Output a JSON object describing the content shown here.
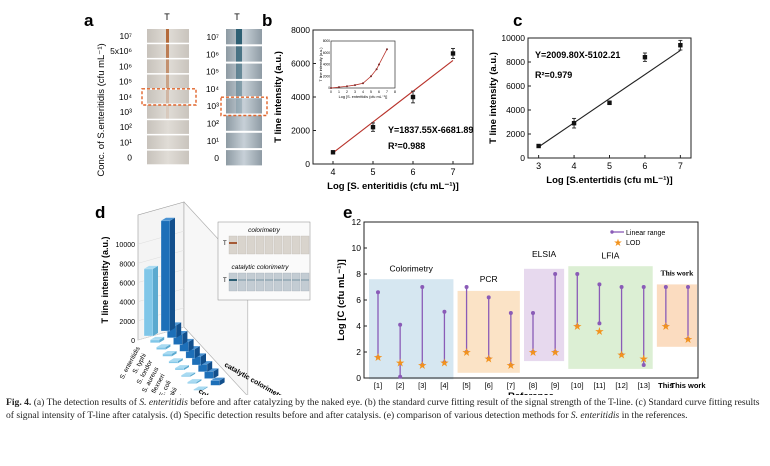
{
  "panel_a": {
    "label": "a",
    "ylabel": "Conc. of S.enteritidis (cfu mL⁻¹)",
    "t_label": "T",
    "left_strip_labels": [
      "10⁷",
      "5x10⁶",
      "10⁶",
      "10⁵",
      "10⁴",
      "10³",
      "10²",
      "10¹",
      "0"
    ],
    "right_strip_labels": [
      "10⁷",
      "10⁶",
      "10⁵",
      "10⁴",
      "10³",
      "10²",
      "10¹",
      "0"
    ]
  },
  "chart_data": [
    {
      "panel": "b",
      "type": "scatter",
      "xlabel": "Log [S. enteritidis (cfu mL⁻¹)]",
      "ylabel": "T line intensity (a.u.)",
      "xlim": [
        3.5,
        7.5
      ],
      "ylim": [
        0,
        8000
      ],
      "xticks": [
        4,
        5,
        6,
        7
      ],
      "yticks": [
        0,
        2000,
        4000,
        6000,
        8000
      ],
      "x": [
        4,
        5,
        6,
        7
      ],
      "y": [
        700,
        2200,
        4000,
        6600
      ],
      "err": [
        80,
        250,
        350,
        300
      ],
      "fit": {
        "slope": 1837.55,
        "intercept": -6681.89
      },
      "equation": "Y=1837.55X-6681.89",
      "r2": "R²=0.988",
      "inset": {
        "xlabel": "Log [S. enteritidis (cfu mL⁻¹)]",
        "ylabel": "T line intensity (a.u.)",
        "x": [
          0,
          1,
          2,
          3,
          4,
          5,
          5.7,
          6,
          7
        ],
        "y": [
          0,
          150,
          300,
          500,
          800,
          2000,
          3200,
          4000,
          6600
        ],
        "xlim": [
          0,
          8
        ],
        "ylim": [
          0,
          8000
        ],
        "xticks": [
          0,
          1,
          2,
          3,
          4,
          5,
          6,
          7,
          8
        ],
        "yticks": [
          0,
          2000,
          4000,
          6000,
          8000
        ]
      }
    },
    {
      "panel": "c",
      "type": "scatter",
      "xlabel": "Log [S.entertidis (cfu mL⁻¹)]",
      "ylabel": "T line intensity (a.u.)",
      "xlim": [
        2.7,
        7.3
      ],
      "ylim": [
        0,
        10000
      ],
      "xticks": [
        3,
        4,
        5,
        6,
        7
      ],
      "yticks": [
        0,
        2000,
        4000,
        6000,
        8000,
        10000
      ],
      "x": [
        3,
        4,
        5,
        6,
        7
      ],
      "y": [
        1000,
        2900,
        4600,
        8400,
        9400
      ],
      "err": [
        60,
        400,
        150,
        350,
        400
      ],
      "fit": {
        "slope": 2009.8,
        "intercept": -5102.21
      },
      "equation": "Y=2009.80X-5102.21",
      "r2": "R²=0.979"
    },
    {
      "panel": "d",
      "type": "bar",
      "zlabel": "T line intensity (a.u.)",
      "zticks": [
        0,
        2000,
        4000,
        6000,
        8000,
        10000
      ],
      "categories": [
        "S. enteritidis",
        "S. typhi",
        "S. londor",
        "S. aureus",
        "S. flexneri",
        "E. coli",
        "E. sakazakii",
        "P. pyogenes",
        "control"
      ],
      "series": [
        {
          "name": "colorimetry",
          "values": [
            7000,
            300,
            250,
            250,
            200,
            200,
            150,
            150,
            100
          ]
        },
        {
          "name": "catalytic colorimetry",
          "values": [
            11500,
            1300,
            1100,
            1000,
            950,
            900,
            800,
            750,
            500
          ]
        }
      ],
      "inset_titles": [
        "colorimetry",
        "catalytic colorimetry"
      ],
      "inset_t_label": "T"
    },
    {
      "panel": "e",
      "type": "range",
      "ylabel": "Log [C (cfu mL⁻¹)]",
      "xlabel": "Reference",
      "ylim": [
        0,
        12
      ],
      "yticks": [
        0,
        2,
        4,
        6,
        8,
        10,
        12
      ],
      "categories": [
        "[1]",
        "[2]",
        "[3]",
        "[4]",
        "[5]",
        "[6]",
        "[7]",
        "[8]",
        "[9]",
        "[10]",
        "[11]",
        "[12]",
        "[13]",
        "This",
        "This work"
      ],
      "range_low": [
        1.6,
        0.1,
        1.0,
        1.2,
        2.0,
        1.5,
        1.0,
        2.0,
        2.0,
        4.0,
        4.2,
        1.8,
        1.0,
        4.0,
        3.0
      ],
      "range_high": [
        6.6,
        4.1,
        7.0,
        5.1,
        7.0,
        6.2,
        5.0,
        5.0,
        8.0,
        8.0,
        7.2,
        7.0,
        7.0,
        7.0,
        7.0
      ],
      "lod": [
        1.6,
        1.2,
        1.0,
        1.2,
        2.0,
        1.5,
        1.0,
        2.0,
        2.0,
        4.0,
        3.6,
        1.8,
        1.5,
        4.0,
        3.0
      ],
      "groups": [
        {
          "name": "Colorimetry",
          "from": 0,
          "to": 3,
          "color": "#d6e7f1"
        },
        {
          "name": "PCR",
          "from": 4,
          "to": 6,
          "color": "#fbe3c6"
        },
        {
          "name": "ELSIA",
          "from": 7,
          "to": 8,
          "color": "#e7d9ee"
        },
        {
          "name": "LFIA",
          "from": 9,
          "to": 12,
          "color": "#dcefd4"
        },
        {
          "name": "This work",
          "from": 13,
          "to": 14,
          "color": "#fbdcc0"
        }
      ],
      "legend": [
        "Linear range",
        "LOD"
      ]
    }
  ],
  "panel_labels": {
    "b": "b",
    "c": "c",
    "d": "d",
    "e": "e"
  },
  "caption": {
    "fig": "Fig. 4.",
    "t1": " (a) The detection results of ",
    "sp": "S. enteritidis",
    "t2": " before and after catalyzing by the naked eye. (b) the standard curve fitting result of the signal strength of the T-line. (c) Standard curve fitting results of signal intensity of T-line after catalysis. (d) Specific detection results before and after catalysis. (e) comparison of various detection methods for ",
    "sp2": "S. enteritidis",
    "t3": " in the references."
  },
  "colors": {
    "line_b": "#b8322a",
    "line_c": "#222222",
    "bar_light": "#7fc6e8",
    "bar_dark": "#1d6fb8",
    "purple": "#8a5bb7",
    "orange": "#f2931e"
  }
}
